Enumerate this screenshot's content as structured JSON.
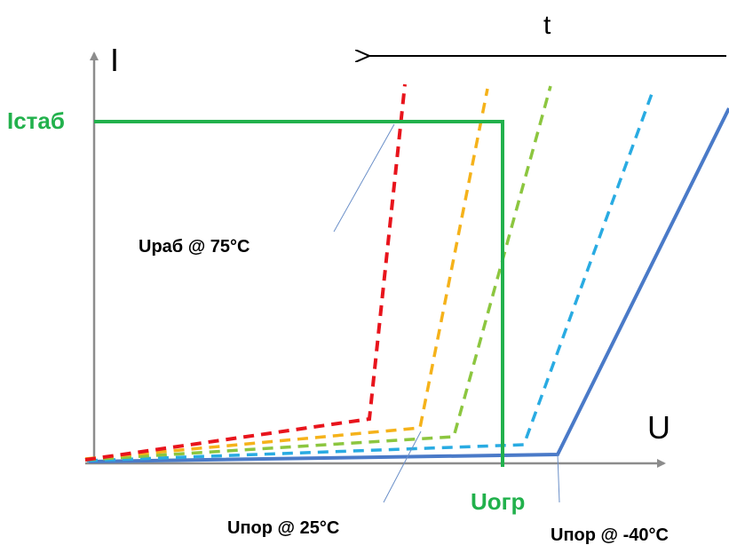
{
  "labels": {
    "y_axis": "I",
    "x_axis": "U",
    "time": "t",
    "i_stab": "Iстаб",
    "u_limit": "Uогр",
    "u_work_75": "Uраб @ 75°C",
    "u_thr_25": "Uпор @ 25°C",
    "u_thr_m40": "Uпор @ -40°C"
  },
  "colors": {
    "axis": "#8c8c8c",
    "time_arrow": "#000000",
    "limit_line": "#22b14c",
    "curve_75": "#e8141c",
    "curve_orange": "#f5b21a",
    "curve_green": "#8cc63f",
    "curve_blue_dash": "#29abe2",
    "curve_m40": "#4a7ac8",
    "leader": "#6a8fc8"
  }
}
